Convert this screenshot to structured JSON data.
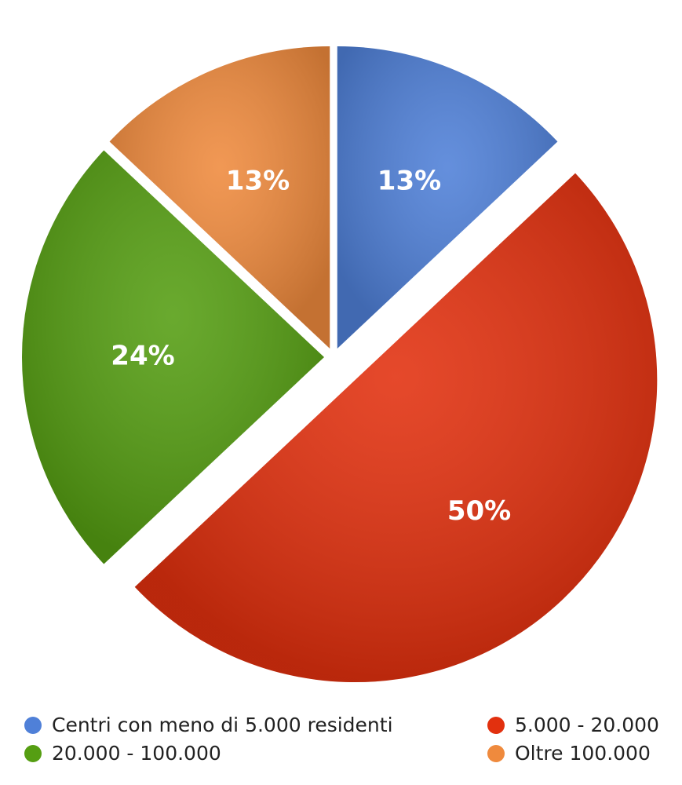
{
  "chart_data": {
    "type": "pie",
    "categories": [
      "Centri con meno di 5.000 residenti",
      "5.000 - 20.000",
      "20.000 - 100.000",
      "Oltre 100.000"
    ],
    "values": [
      13,
      50,
      24,
      13
    ],
    "value_labels": [
      "13%",
      "50%",
      "24%",
      "13%"
    ],
    "colors": [
      "#4f80d8",
      "#e2300e",
      "#559e12",
      "#ef8a3d"
    ]
  }
}
